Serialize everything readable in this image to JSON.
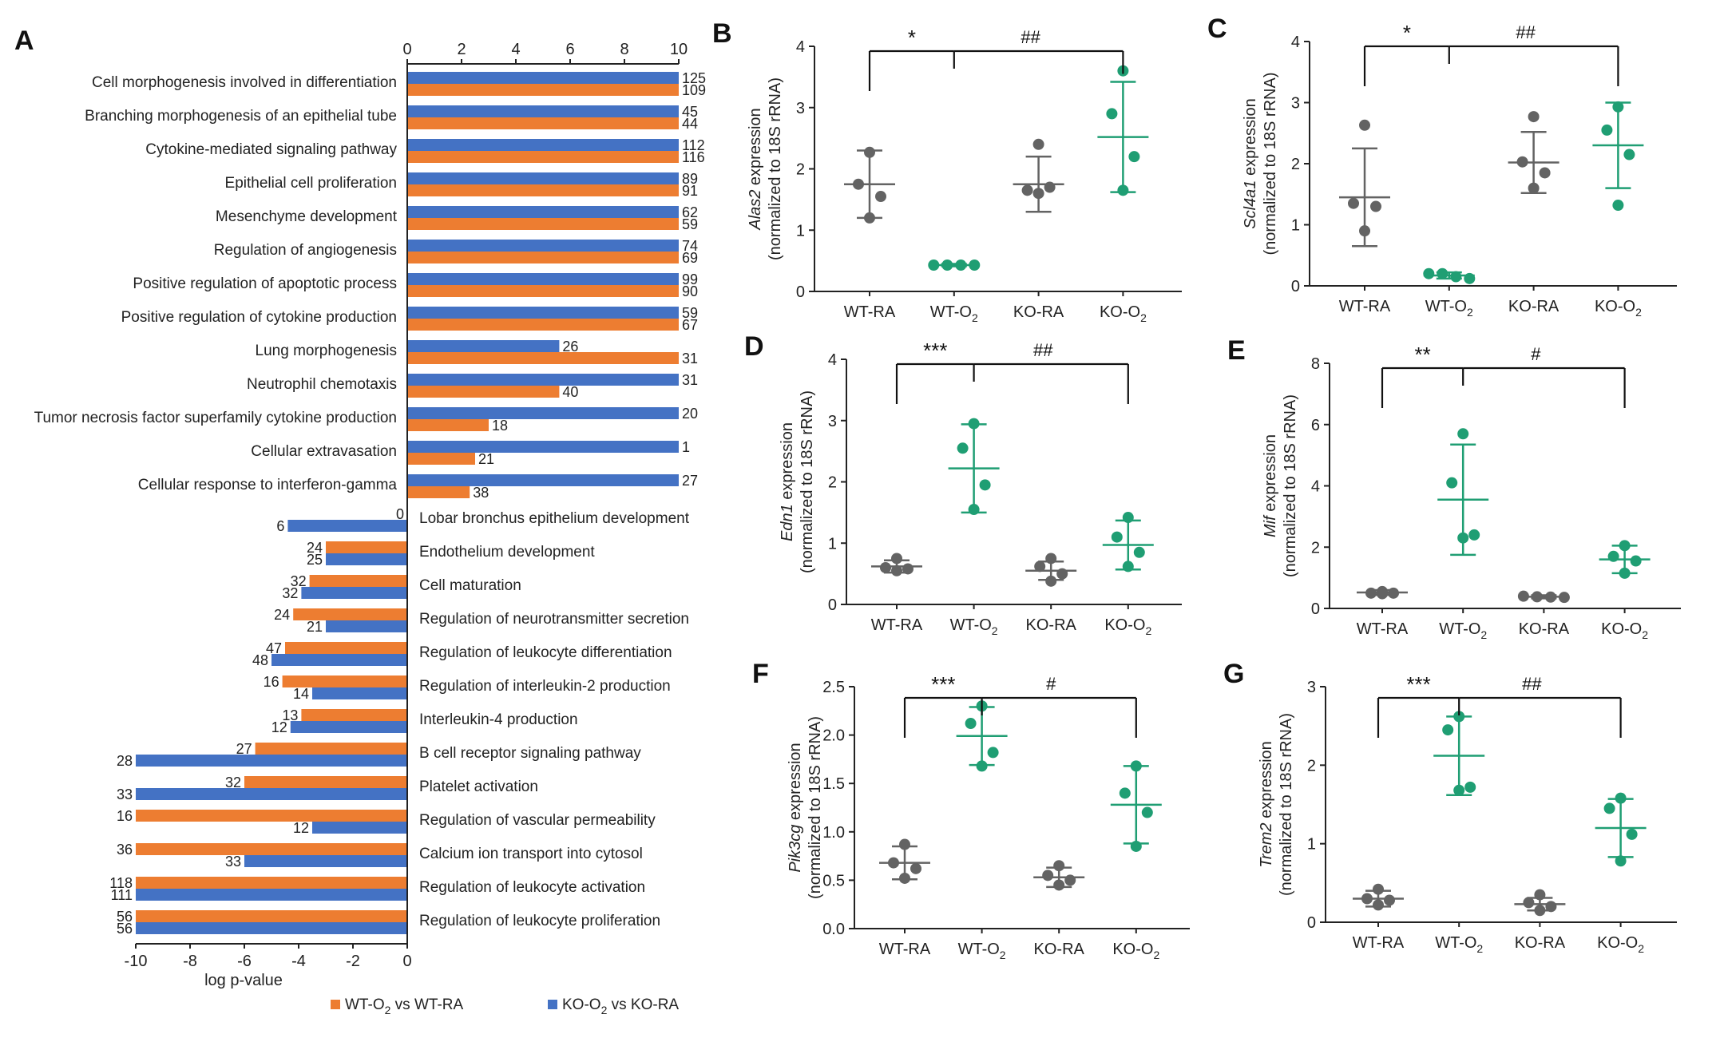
{
  "colors": {
    "orange": "#ed7d31",
    "blue": "#4472c4",
    "wt": "#636363",
    "o2": "#1f9e73",
    "black": "#1a1a1a"
  },
  "chart_data": [
    {
      "panel": "A",
      "type": "bar",
      "orientation": "horizontal",
      "xlabel": "log p-value",
      "top_axis_ticks": [
        "0",
        "2",
        "4",
        "6",
        "8",
        "10"
      ],
      "bottom_axis_ticks": [
        "-10",
        "-8",
        "-6",
        "-4",
        "-2",
        "0"
      ],
      "xlim": [
        -10,
        10
      ],
      "series": [
        {
          "name": "WT-O2 vs WT-RA",
          "legend_main": "WT-O",
          "legend_sub": "2",
          "legend_rest": " vs WT-RA",
          "color": "#ed7d31"
        },
        {
          "name": "KO-O2 vs KO-RA",
          "legend_main": "KO-O",
          "legend_sub": "2",
          "legend_rest": " vs KO-RA",
          "color": "#4472c4"
        }
      ],
      "up_terms": [
        {
          "term": "Cell morphogenesis involved in differentiation",
          "ko": 10,
          "wt": 10,
          "ko_count": "125",
          "wt_count": "109"
        },
        {
          "term": "Branching morphogenesis of an epithelial tube",
          "ko": 10,
          "wt": 10,
          "ko_count": "45",
          "wt_count": "44"
        },
        {
          "term": "Cytokine-mediated signaling pathway",
          "ko": 10,
          "wt": 10,
          "ko_count": "112",
          "wt_count": "116"
        },
        {
          "term": "Epithelial cell proliferation",
          "ko": 10,
          "wt": 10,
          "ko_count": "89",
          "wt_count": "91"
        },
        {
          "term": "Mesenchyme development",
          "ko": 10,
          "wt": 10,
          "ko_count": "62",
          "wt_count": "59"
        },
        {
          "term": "Regulation of angiogenesis",
          "ko": 10,
          "wt": 10,
          "ko_count": "74",
          "wt_count": "69"
        },
        {
          "term": "Positive regulation of apoptotic process",
          "ko": 10,
          "wt": 10,
          "ko_count": "99",
          "wt_count": "90"
        },
        {
          "term": "Positive regulation of cytokine production",
          "ko": 10,
          "wt": 10,
          "ko_count": "59",
          "wt_count": "67"
        },
        {
          "term": "Lung morphogenesis",
          "ko": 5.6,
          "wt": 10,
          "ko_count": "26",
          "wt_count": "31"
        },
        {
          "term": "Neutrophil chemotaxis",
          "ko": 10,
          "wt": 5.6,
          "ko_count": "31",
          "wt_count": "40"
        },
        {
          "term": "Tumor necrosis factor superfamily cytokine production",
          "ko": 10,
          "wt": 3.0,
          "ko_count": "20",
          "wt_count": "18"
        },
        {
          "term": "Cellular extravasation",
          "ko": 10,
          "wt": 2.5,
          "ko_count": "1",
          "wt_count": "21"
        },
        {
          "term": "Cellular response to interferon-gamma",
          "ko": 10,
          "wt": 2.3,
          "ko_count": "27",
          "wt_count": "38"
        }
      ],
      "down_terms": [
        {
          "term": "Lobar bronchus epithelium development",
          "wt": 0,
          "ko": -4.4,
          "wt_count": "0",
          "ko_count": "6"
        },
        {
          "term": "Endothelium development",
          "wt": -3.0,
          "ko": -3.0,
          "wt_count": "24",
          "ko_count": "25"
        },
        {
          "term": "Cell maturation",
          "wt": -3.6,
          "ko": -3.9,
          "wt_count": "32",
          "ko_count": "32"
        },
        {
          "term": "Regulation of neurotransmitter secretion",
          "wt": -4.2,
          "ko": -3.0,
          "wt_count": "24",
          "ko_count": "21"
        },
        {
          "term": "Regulation of leukocyte differentiation",
          "wt": -4.5,
          "ko": -5.0,
          "wt_count": "47",
          "ko_count": "48"
        },
        {
          "term": "Regulation of interleukin-2 production",
          "wt": -4.6,
          "ko": -3.5,
          "wt_count": "16",
          "ko_count": "14"
        },
        {
          "term": "Interleukin-4 production",
          "wt": -3.9,
          "ko": -4.3,
          "wt_count": "13",
          "ko_count": "12"
        },
        {
          "term": "B cell receptor signaling pathway",
          "wt": -5.6,
          "ko": -10,
          "wt_count": "27",
          "ko_count": "28"
        },
        {
          "term": "Platelet activation",
          "wt": -6.0,
          "ko": -10,
          "wt_count": "32",
          "ko_count": "33"
        },
        {
          "term": "Regulation of vascular permeability",
          "wt": -10,
          "ko": -3.5,
          "wt_count": "16",
          "ko_count": "12"
        },
        {
          "term": "Calcium ion transport into cytosol",
          "wt": -10,
          "ko": -6.0,
          "wt_count": "36",
          "ko_count": "33"
        },
        {
          "term": "Regulation of leukocyte activation",
          "wt": -10,
          "ko": -10,
          "wt_count": "118",
          "ko_count": "111"
        },
        {
          "term": "Regulation of leukocyte proliferation",
          "wt": -10,
          "ko": -10,
          "wt_count": "56",
          "ko_count": "56"
        }
      ]
    },
    {
      "panel": "B",
      "type": "scatter",
      "gene": "Alas2",
      "ylabel_rest": " expression",
      "ylabel2": "(normalized to 18S rRNA)",
      "ylim": [
        0,
        4
      ],
      "yticks": [
        "0",
        "1",
        "2",
        "3",
        "4"
      ],
      "groups": [
        {
          "main": "WT-RA",
          "sub": "",
          "mean": 1.75,
          "sd": 0.55,
          "points": [
            2.27,
            1.75,
            1.55,
            1.2
          ],
          "color": "#636363"
        },
        {
          "main": "WT-O",
          "sub": "2",
          "mean": 0.43,
          "sd": 0.02,
          "points": [
            0.43,
            0.43,
            0.43,
            0.43
          ],
          "color": "#1f9e73"
        },
        {
          "main": "KO-RA",
          "sub": "",
          "mean": 1.75,
          "sd": 0.45,
          "points": [
            2.4,
            1.65,
            1.7,
            1.6
          ],
          "color": "#636363"
        },
        {
          "main": "KO-O",
          "sub": "2",
          "mean": 2.52,
          "sd": 0.9,
          "points": [
            3.6,
            2.9,
            2.2,
            1.65
          ],
          "color": "#1f9e73"
        }
      ],
      "left_mark": "*",
      "right_mark": "##"
    },
    {
      "panel": "C",
      "type": "scatter",
      "gene": "Scl4a1",
      "ylabel_rest": " expression",
      "ylabel2": "(normalized to 18S rRNA)",
      "ylim": [
        0,
        4
      ],
      "yticks": [
        "0",
        "1",
        "2",
        "3",
        "4"
      ],
      "groups": [
        {
          "main": "WT-RA",
          "sub": "",
          "mean": 1.45,
          "sd": 0.8,
          "points": [
            2.63,
            1.35,
            1.3,
            0.9
          ],
          "color": "#636363"
        },
        {
          "main": "WT-O",
          "sub": "2",
          "mean": 0.17,
          "sd": 0.05,
          "points": [
            0.2,
            0.2,
            0.15,
            0.12
          ],
          "color": "#1f9e73"
        },
        {
          "main": "KO-RA",
          "sub": "",
          "mean": 2.02,
          "sd": 0.5,
          "points": [
            2.77,
            2.03,
            1.85,
            1.6
          ],
          "color": "#636363"
        },
        {
          "main": "KO-O",
          "sub": "2",
          "mean": 2.3,
          "sd": 0.7,
          "points": [
            2.93,
            2.55,
            2.15,
            1.32
          ],
          "color": "#1f9e73"
        }
      ],
      "left_mark": "*",
      "right_mark": "##"
    },
    {
      "panel": "D",
      "type": "scatter",
      "gene": "Edn1",
      "ylabel_rest": " expression",
      "ylabel2": "(normalized to 18S rRNA)",
      "ylim": [
        0,
        4
      ],
      "yticks": [
        "0",
        "1",
        "2",
        "3",
        "4"
      ],
      "groups": [
        {
          "main": "WT-RA",
          "sub": "",
          "mean": 0.62,
          "sd": 0.1,
          "points": [
            0.75,
            0.6,
            0.58,
            0.55
          ],
          "color": "#636363"
        },
        {
          "main": "WT-O",
          "sub": "2",
          "mean": 2.22,
          "sd": 0.72,
          "points": [
            2.95,
            2.55,
            1.95,
            1.55
          ],
          "color": "#1f9e73"
        },
        {
          "main": "KO-RA",
          "sub": "",
          "mean": 0.55,
          "sd": 0.15,
          "points": [
            0.75,
            0.62,
            0.5,
            0.38
          ],
          "color": "#636363"
        },
        {
          "main": "KO-O",
          "sub": "2",
          "mean": 0.97,
          "sd": 0.4,
          "points": [
            1.42,
            1.1,
            0.85,
            0.62
          ],
          "color": "#1f9e73"
        }
      ],
      "left_mark": "***",
      "right_mark": "##"
    },
    {
      "panel": "E",
      "type": "scatter",
      "gene": "Mif",
      "ylabel_rest": " expression",
      "ylabel2": "(normalized to 18S rRNA)",
      "ylim": [
        0,
        8
      ],
      "yticks": [
        "0",
        "2",
        "4",
        "6",
        "8"
      ],
      "groups": [
        {
          "main": "WT-RA",
          "sub": "",
          "mean": 0.52,
          "sd": 0.08,
          "points": [
            0.55,
            0.5,
            0.5,
            0.48
          ],
          "color": "#636363"
        },
        {
          "main": "WT-O",
          "sub": "2",
          "mean": 3.55,
          "sd": 1.8,
          "points": [
            5.7,
            4.1,
            2.4,
            2.3
          ],
          "color": "#1f9e73"
        },
        {
          "main": "KO-RA",
          "sub": "",
          "mean": 0.38,
          "sd": 0.05,
          "points": [
            0.4,
            0.38,
            0.37,
            0.36
          ],
          "color": "#636363"
        },
        {
          "main": "KO-O",
          "sub": "2",
          "mean": 1.6,
          "sd": 0.45,
          "points": [
            2.05,
            1.7,
            1.55,
            1.15
          ],
          "color": "#1f9e73"
        }
      ],
      "left_mark": "**",
      "right_mark": "#"
    },
    {
      "panel": "F",
      "type": "scatter",
      "gene": "Pik3cg",
      "ylabel_rest": " expression",
      "ylabel2": "(normalized to 18S rRNA)",
      "ylim": [
        0,
        2.5
      ],
      "yticks": [
        "0.0",
        "0.5",
        "1.0",
        "1.5",
        "2.0",
        "2.5"
      ],
      "groups": [
        {
          "main": "WT-RA",
          "sub": "",
          "mean": 0.68,
          "sd": 0.17,
          "points": [
            0.87,
            0.68,
            0.62,
            0.52
          ],
          "color": "#636363"
        },
        {
          "main": "WT-O",
          "sub": "2",
          "mean": 1.99,
          "sd": 0.3,
          "points": [
            2.3,
            2.12,
            1.82,
            1.68
          ],
          "color": "#1f9e73"
        },
        {
          "main": "KO-RA",
          "sub": "",
          "mean": 0.53,
          "sd": 0.1,
          "points": [
            0.65,
            0.55,
            0.5,
            0.45
          ],
          "color": "#636363"
        },
        {
          "main": "KO-O",
          "sub": "2",
          "mean": 1.28,
          "sd": 0.4,
          "points": [
            1.68,
            1.4,
            1.2,
            0.85
          ],
          "color": "#1f9e73"
        }
      ],
      "left_mark": "***",
      "right_mark": "#"
    },
    {
      "panel": "G",
      "type": "scatter",
      "gene": "Trem2",
      "ylabel_rest": " expression",
      "ylabel2": "(normalized to 18S rRNA)",
      "ylim": [
        0,
        3
      ],
      "yticks": [
        "0",
        "1",
        "2",
        "3"
      ],
      "groups": [
        {
          "main": "WT-RA",
          "sub": "",
          "mean": 0.3,
          "sd": 0.1,
          "points": [
            0.42,
            0.3,
            0.28,
            0.22
          ],
          "color": "#636363"
        },
        {
          "main": "WT-O",
          "sub": "2",
          "mean": 2.12,
          "sd": 0.5,
          "points": [
            2.62,
            2.45,
            1.72,
            1.68
          ],
          "color": "#1f9e73"
        },
        {
          "main": "KO-RA",
          "sub": "",
          "mean": 0.23,
          "sd": 0.08,
          "points": [
            0.35,
            0.25,
            0.2,
            0.15
          ],
          "color": "#636363"
        },
        {
          "main": "KO-O",
          "sub": "2",
          "mean": 1.2,
          "sd": 0.37,
          "points": [
            1.58,
            1.45,
            1.12,
            0.78
          ],
          "color": "#1f9e73"
        }
      ],
      "left_mark": "***",
      "right_mark": "##"
    }
  ]
}
